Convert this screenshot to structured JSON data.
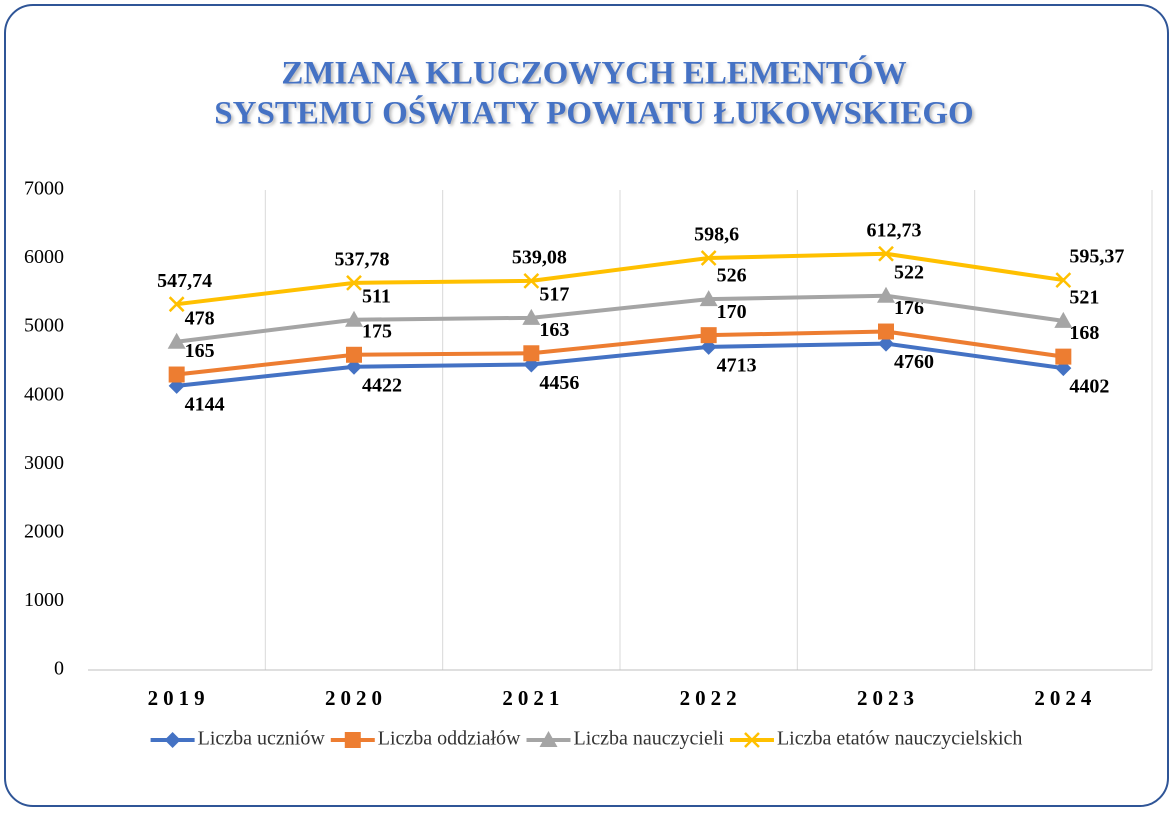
{
  "chart_data": {
    "type": "line",
    "stacked": true,
    "title": [
      "ZMIANA KLUCZOWYCH ELEMENTÓW",
      "SYSTEMU OŚWIATY POWIATU ŁUKOWSKIEGO"
    ],
    "categories": [
      "2019",
      "2020",
      "2021",
      "2022",
      "2023",
      "2024"
    ],
    "series": [
      {
        "name": "Liczba uczniów",
        "color": "#4472c4",
        "marker": "diamond",
        "values": [
          4144,
          4422,
          4456,
          4713,
          4760,
          4402
        ]
      },
      {
        "name": "Liczba oddziałów",
        "color": "#ed7d31",
        "marker": "square",
        "values": [
          165,
          175,
          163,
          170,
          176,
          168
        ]
      },
      {
        "name": "Liczba nauczycieli",
        "color": "#a5a5a5",
        "marker": "triangle",
        "values": [
          478,
          511,
          517,
          526,
          522,
          521
        ]
      },
      {
        "name": "Liczba etatów nauczycielskich",
        "color": "#ffc000",
        "marker": "x",
        "values": [
          547.74,
          537.78,
          539.08,
          598.6,
          612.73,
          595.37
        ],
        "value_labels": [
          "547,74",
          "537,78",
          "539,08",
          "598,6",
          "612,73",
          "595,37"
        ]
      }
    ],
    "ylim": [
      0,
      7000
    ],
    "yticks": [
      0,
      1000,
      2000,
      3000,
      4000,
      5000,
      6000,
      7000
    ],
    "grid": "vertical",
    "legend": "bottom"
  }
}
